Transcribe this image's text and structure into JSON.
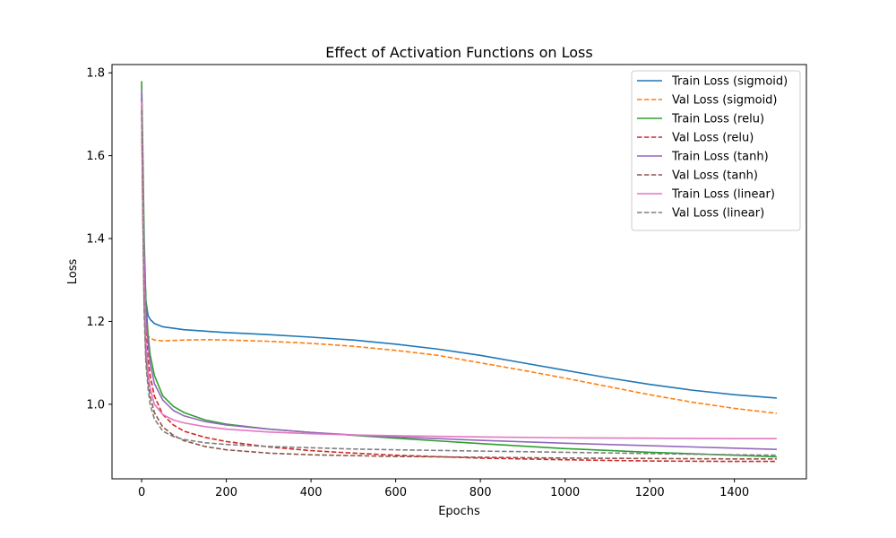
{
  "chart_data": {
    "type": "line",
    "title": "Effect of Activation Functions on Loss",
    "xlabel": "Epochs",
    "ylabel": "Loss",
    "xlim": [
      -70,
      1570
    ],
    "ylim": [
      0.82,
      1.82
    ],
    "xticks": [
      0,
      200,
      400,
      600,
      800,
      1000,
      1200,
      1400
    ],
    "yticks": [
      1.0,
      1.2,
      1.4,
      1.6,
      1.8
    ],
    "ytick_labels": [
      "1.0",
      "1.2",
      "1.4",
      "1.6",
      "1.8"
    ],
    "grid": false,
    "legend_position": "top-right",
    "series": [
      {
        "name": "Train Loss (sigmoid)",
        "color": "#1f77b4",
        "dash": "solid",
        "x": [
          0,
          3,
          6,
          10,
          15,
          20,
          30,
          50,
          100,
          200,
          300,
          400,
          500,
          600,
          700,
          800,
          900,
          1000,
          1100,
          1200,
          1300,
          1400,
          1500
        ],
        "y": [
          1.75,
          1.55,
          1.35,
          1.25,
          1.215,
          1.205,
          1.195,
          1.187,
          1.18,
          1.173,
          1.168,
          1.162,
          1.155,
          1.145,
          1.133,
          1.118,
          1.1,
          1.082,
          1.064,
          1.048,
          1.034,
          1.023,
          1.015
        ]
      },
      {
        "name": "Val Loss (sigmoid)",
        "color": "#ff7f0e",
        "dash": "dashed",
        "x": [
          0,
          3,
          6,
          10,
          15,
          20,
          30,
          50,
          100,
          150,
          200,
          300,
          400,
          500,
          600,
          700,
          800,
          900,
          1000,
          1100,
          1200,
          1300,
          1400,
          1500
        ],
        "y": [
          1.7,
          1.45,
          1.25,
          1.18,
          1.165,
          1.16,
          1.155,
          1.153,
          1.155,
          1.156,
          1.155,
          1.152,
          1.147,
          1.14,
          1.13,
          1.118,
          1.1,
          1.082,
          1.063,
          1.043,
          1.023,
          1.005,
          0.99,
          0.978
        ]
      },
      {
        "name": "Train Loss (relu)",
        "color": "#2ca02c",
        "dash": "solid",
        "x": [
          0,
          3,
          6,
          10,
          15,
          20,
          30,
          50,
          75,
          100,
          150,
          200,
          300,
          400,
          500,
          600,
          800,
          1000,
          1200,
          1400,
          1500
        ],
        "y": [
          1.78,
          1.6,
          1.4,
          1.25,
          1.17,
          1.12,
          1.07,
          1.02,
          0.995,
          0.98,
          0.962,
          0.952,
          0.94,
          0.932,
          0.925,
          0.918,
          0.905,
          0.893,
          0.884,
          0.877,
          0.873
        ]
      },
      {
        "name": "Val Loss (relu)",
        "color": "#d62728",
        "dash": "dashed",
        "x": [
          0,
          3,
          6,
          10,
          15,
          20,
          30,
          50,
          75,
          100,
          150,
          200,
          300,
          400,
          500,
          600,
          800,
          1000,
          1200,
          1400,
          1500
        ],
        "y": [
          1.74,
          1.5,
          1.3,
          1.18,
          1.11,
          1.07,
          1.02,
          0.975,
          0.95,
          0.935,
          0.92,
          0.91,
          0.897,
          0.888,
          0.882,
          0.877,
          0.87,
          0.866,
          0.863,
          0.862,
          0.862
        ]
      },
      {
        "name": "Train Loss (tanh)",
        "color": "#9467bd",
        "dash": "solid",
        "x": [
          0,
          3,
          6,
          10,
          15,
          20,
          30,
          50,
          75,
          100,
          150,
          200,
          300,
          400,
          500,
          600,
          800,
          1000,
          1200,
          1400,
          1500
        ],
        "y": [
          1.76,
          1.55,
          1.35,
          1.22,
          1.15,
          1.1,
          1.05,
          1.01,
          0.985,
          0.972,
          0.958,
          0.95,
          0.94,
          0.932,
          0.926,
          0.921,
          0.913,
          0.906,
          0.9,
          0.894,
          0.891
        ]
      },
      {
        "name": "Val Loss (tanh)",
        "color": "#8c564b",
        "dash": "dashed",
        "x": [
          0,
          3,
          6,
          10,
          15,
          20,
          30,
          50,
          75,
          100,
          150,
          200,
          300,
          400,
          500,
          600,
          800,
          1000,
          1200,
          1400,
          1500
        ],
        "y": [
          1.72,
          1.45,
          1.25,
          1.12,
          1.06,
          1.02,
          0.98,
          0.945,
          0.925,
          0.912,
          0.898,
          0.89,
          0.882,
          0.878,
          0.876,
          0.874,
          0.872,
          0.87,
          0.869,
          0.868,
          0.868
        ]
      },
      {
        "name": "Train Loss (linear)",
        "color": "#e377c2",
        "dash": "solid",
        "x": [
          0,
          3,
          6,
          10,
          15,
          20,
          30,
          50,
          75,
          100,
          150,
          200,
          300,
          400,
          500,
          600,
          800,
          1000,
          1200,
          1400,
          1500
        ],
        "y": [
          1.73,
          1.5,
          1.3,
          1.15,
          1.08,
          1.04,
          1.0,
          0.975,
          0.962,
          0.955,
          0.946,
          0.94,
          0.933,
          0.929,
          0.926,
          0.924,
          0.921,
          0.919,
          0.918,
          0.917,
          0.917
        ]
      },
      {
        "name": "Val Loss (linear)",
        "color": "#7f7f7f",
        "dash": "dashed",
        "x": [
          0,
          3,
          6,
          10,
          15,
          20,
          30,
          50,
          75,
          100,
          150,
          200,
          300,
          400,
          500,
          600,
          800,
          1000,
          1200,
          1400,
          1500
        ],
        "y": [
          1.71,
          1.45,
          1.22,
          1.1,
          1.04,
          1.0,
          0.965,
          0.935,
          0.922,
          0.915,
          0.907,
          0.903,
          0.898,
          0.895,
          0.892,
          0.89,
          0.887,
          0.884,
          0.881,
          0.878,
          0.877
        ]
      }
    ]
  }
}
